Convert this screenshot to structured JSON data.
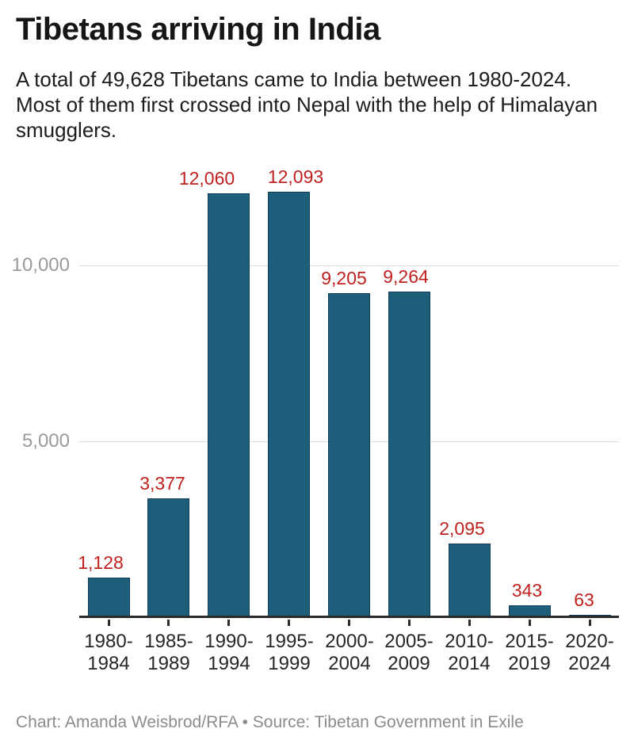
{
  "header": {
    "title": "Tibetans arriving in India",
    "description": "A total of 49,628 Tibetans came to India between 1980-2024.\nMost of them first crossed into Nepal with the help of Himalayan\nsmugglers."
  },
  "footer": {
    "credit": "Chart: Amanda Weisbrod/RFA • Source: Tibetan Government in Exile"
  },
  "chart_data": {
    "type": "bar",
    "title": "Tibetans arriving in India",
    "xlabel": "",
    "ylabel": "",
    "categories": [
      "1980-1984",
      "1985-1989",
      "1990-1994",
      "1995-1999",
      "2000-2004",
      "2005-2009",
      "2010-2014",
      "2015-2019",
      "2020-2024"
    ],
    "category_labels": [
      "1980-\n1984",
      "1985-\n1989",
      "1990-\n1994",
      "1995-\n1999",
      "2000-\n2004",
      "2005-\n2009",
      "2010-\n2014",
      "2015-\n2019",
      "2020-\n2024"
    ],
    "values": [
      1128,
      3377,
      12060,
      12093,
      9205,
      9264,
      2095,
      343,
      63
    ],
    "value_labels": [
      "1,128",
      "3,377",
      "12,060",
      "12,093",
      "9,205",
      "9,264",
      "2,095",
      "343",
      "63"
    ],
    "total_stated": "49,628",
    "y_ticks": [
      {
        "value": 5000,
        "label": "5,000"
      },
      {
        "value": 10000,
        "label": "10,000"
      }
    ],
    "ylim": [
      0,
      12100
    ],
    "grid": "horizontal",
    "legend": "none",
    "colors": {
      "bar_fill": "#1d5f7a",
      "bar_border": "#103c56",
      "value_label": "#c0211f",
      "grid_line": "#dddddd",
      "y_tick_label": "#9a9a9a",
      "x_tick_label": "#262626",
      "axis_line": "#2b2b2b",
      "title": "#161616",
      "description": "#1c1c1c",
      "footer": "#8c8c8c",
      "background": "#ffffff"
    }
  }
}
